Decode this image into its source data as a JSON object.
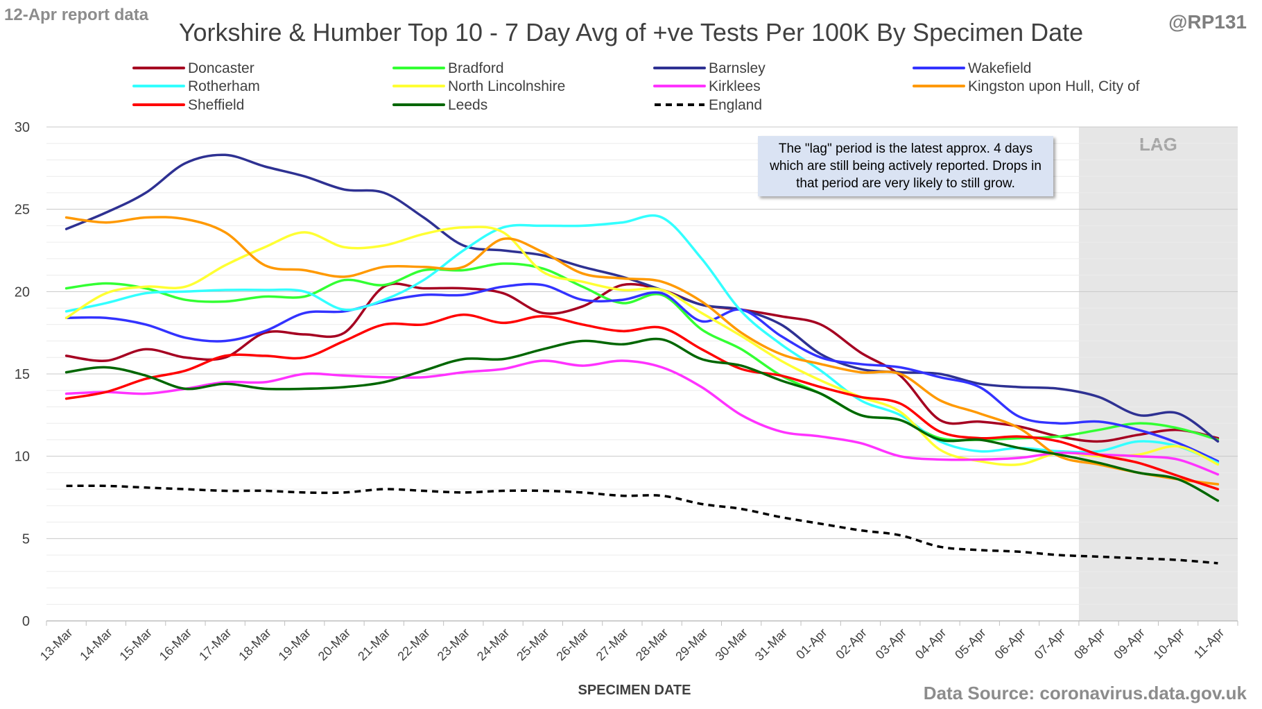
{
  "header": {
    "report_label": "12-Apr report data",
    "handle": "@RP131",
    "title": "Yorkshire & Humber Top 10 - 7 Day Avg of +ve Tests Per 100K By Specimen Date"
  },
  "footer": {
    "source": "Data Source: coronavirus.data.gov.uk"
  },
  "lag_note": "The \"lag\" period is the latest approx. 4 days which are still being actively reported. Drops in that period are very likely to still grow.",
  "chart_data": {
    "type": "line",
    "title": "Yorkshire & Humber Top 10 - 7 Day Avg of +ve Tests Per 100K By Specimen Date",
    "xlabel": "SPECIMEN DATE",
    "ylabel": "",
    "ylim": [
      0,
      30
    ],
    "yticks": [
      0,
      5,
      10,
      15,
      20,
      25,
      30
    ],
    "grid": true,
    "legend_position": "top",
    "lag_region": {
      "label": "LAG",
      "from": "08-Apr",
      "to": "11-Apr"
    },
    "x": [
      "13-Mar",
      "14-Mar",
      "15-Mar",
      "16-Mar",
      "17-Mar",
      "18-Mar",
      "19-Mar",
      "20-Mar",
      "21-Mar",
      "22-Mar",
      "23-Mar",
      "24-Mar",
      "25-Mar",
      "26-Mar",
      "27-Mar",
      "28-Mar",
      "29-Mar",
      "30-Mar",
      "31-Mar",
      "01-Apr",
      "02-Apr",
      "03-Apr",
      "04-Apr",
      "05-Apr",
      "06-Apr",
      "07-Apr",
      "08-Apr",
      "09-Apr",
      "10-Apr",
      "11-Apr"
    ],
    "series": [
      {
        "name": "Doncaster",
        "color": "#a50021",
        "dash": false,
        "values": [
          16.1,
          15.8,
          16.5,
          16.0,
          16.0,
          17.5,
          17.4,
          17.5,
          20.3,
          20.2,
          20.2,
          19.9,
          18.7,
          19.1,
          20.4,
          20.1,
          19.2,
          18.9,
          18.5,
          18.0,
          16.3,
          14.9,
          12.2,
          12.1,
          11.8,
          11.2,
          10.9,
          11.3,
          11.6,
          11.1
        ]
      },
      {
        "name": "Bradford",
        "color": "#33ff33",
        "dash": false,
        "values": [
          20.2,
          20.5,
          20.2,
          19.5,
          19.4,
          19.7,
          19.7,
          20.7,
          20.4,
          21.3,
          21.3,
          21.7,
          21.4,
          20.3,
          19.3,
          19.8,
          17.7,
          16.5,
          14.9,
          13.8,
          12.5,
          12.2,
          11.1,
          11.0,
          11.1,
          11.2,
          11.6,
          12.0,
          11.7,
          11.0
        ]
      },
      {
        "name": "Barnsley",
        "color": "#2e3192",
        "dash": false,
        "values": [
          23.8,
          24.8,
          26.0,
          27.8,
          28.3,
          27.6,
          27.0,
          26.2,
          26.0,
          24.5,
          22.8,
          22.5,
          22.2,
          21.5,
          20.9,
          20.1,
          19.2,
          18.9,
          18.0,
          16.2,
          15.3,
          15.1,
          15.0,
          14.4,
          14.2,
          14.1,
          13.6,
          12.5,
          12.6,
          10.9
        ]
      },
      {
        "name": "Wakefield",
        "color": "#3333ff",
        "dash": false,
        "values": [
          18.4,
          18.4,
          18.0,
          17.2,
          17.0,
          17.6,
          18.7,
          18.8,
          19.4,
          19.8,
          19.8,
          20.3,
          20.4,
          19.5,
          19.5,
          19.9,
          18.2,
          18.9,
          17.3,
          16.0,
          15.6,
          15.4,
          14.8,
          14.2,
          12.4,
          12.0,
          12.1,
          11.6,
          10.8,
          9.7
        ]
      },
      {
        "name": "Rotherham",
        "color": "#33ffff",
        "dash": false,
        "values": [
          18.8,
          19.3,
          19.9,
          20.0,
          20.1,
          20.1,
          20.0,
          18.9,
          19.5,
          20.7,
          22.5,
          23.9,
          24.0,
          24.0,
          24.2,
          24.5,
          22.0,
          18.8,
          16.8,
          15.2,
          13.4,
          12.5,
          10.9,
          10.3,
          10.5,
          10.3,
          10.3,
          10.9,
          10.6,
          9.6
        ]
      },
      {
        "name": "North Lincolnshire",
        "color": "#ffff33",
        "dash": false,
        "values": [
          18.4,
          19.9,
          20.3,
          20.3,
          21.6,
          22.7,
          23.6,
          22.7,
          22.8,
          23.5,
          23.9,
          23.6,
          21.2,
          20.6,
          20.1,
          20.1,
          18.7,
          17.3,
          15.8,
          14.6,
          13.6,
          12.7,
          10.4,
          9.7,
          9.5,
          10.2,
          10.0,
          10.1,
          10.6,
          9.5
        ]
      },
      {
        "name": "Kirklees",
        "color": "#ff33ff",
        "dash": false,
        "values": [
          13.8,
          13.9,
          13.8,
          14.1,
          14.5,
          14.5,
          15.0,
          14.9,
          14.8,
          14.8,
          15.1,
          15.3,
          15.8,
          15.5,
          15.8,
          15.4,
          14.2,
          12.5,
          11.5,
          11.2,
          10.8,
          10.0,
          9.8,
          9.8,
          9.9,
          10.2,
          10.1,
          10.0,
          9.8,
          8.9
        ]
      },
      {
        "name": "Kingston upon Hull, City of",
        "color": "#ff9900",
        "dash": false,
        "values": [
          24.5,
          24.2,
          24.5,
          24.4,
          23.6,
          21.6,
          21.3,
          20.9,
          21.5,
          21.5,
          21.5,
          23.2,
          22.4,
          21.1,
          20.8,
          20.6,
          19.4,
          17.5,
          16.2,
          15.6,
          15.1,
          15.0,
          13.4,
          12.6,
          11.7,
          10.0,
          9.5,
          9.0,
          8.6,
          8.3
        ]
      },
      {
        "name": "Sheffield",
        "color": "#ff0000",
        "dash": false,
        "values": [
          13.5,
          13.9,
          14.7,
          15.2,
          16.1,
          16.1,
          16.0,
          17.0,
          18.0,
          18.0,
          18.6,
          18.1,
          18.5,
          18.0,
          17.6,
          17.8,
          16.5,
          15.3,
          14.9,
          14.2,
          13.6,
          13.2,
          11.5,
          11.1,
          11.2,
          10.9,
          10.1,
          9.6,
          8.8,
          8.0
        ]
      },
      {
        "name": "Leeds",
        "color": "#006600",
        "dash": false,
        "values": [
          15.1,
          15.4,
          14.9,
          14.1,
          14.4,
          14.1,
          14.1,
          14.2,
          14.5,
          15.2,
          15.9,
          15.9,
          16.5,
          17.0,
          16.8,
          17.1,
          15.9,
          15.5,
          14.6,
          13.8,
          12.5,
          12.2,
          11.0,
          11.0,
          10.5,
          10.1,
          9.6,
          9.0,
          8.6,
          7.3
        ]
      },
      {
        "name": "England",
        "color": "#000000",
        "dash": true,
        "values": [
          8.2,
          8.2,
          8.1,
          8.0,
          7.9,
          7.9,
          7.8,
          7.8,
          8.0,
          7.9,
          7.8,
          7.9,
          7.9,
          7.8,
          7.6,
          7.6,
          7.1,
          6.8,
          6.3,
          5.9,
          5.5,
          5.2,
          4.5,
          4.3,
          4.2,
          4.0,
          3.9,
          3.8,
          3.7,
          3.5
        ]
      }
    ]
  }
}
